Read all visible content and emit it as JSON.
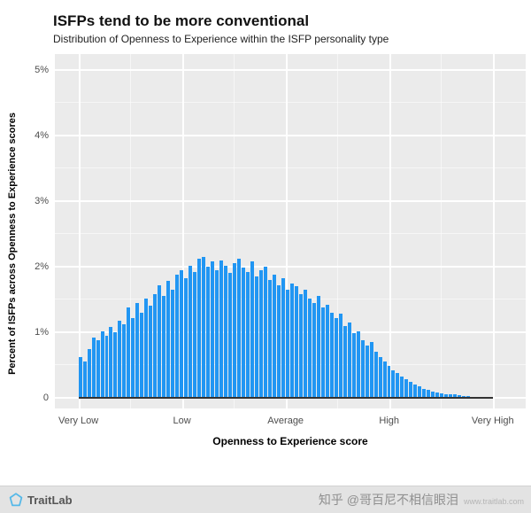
{
  "header": {
    "title": "ISFPs tend to be more conventional",
    "subtitle": "Distribution of Openness to Experience within the ISFP personality type"
  },
  "chart_data": {
    "type": "bar",
    "title": "ISFPs tend to be more conventional",
    "subtitle": "Distribution of Openness to Experience within the ISFP personality type",
    "xlabel": "Openness to Experience score",
    "ylabel": "Percent of ISFPs across Openness to Experience scores",
    "x_tick_labels": [
      "Very Low",
      "Low",
      "Average",
      "High",
      "Very High"
    ],
    "y_tick_labels": [
      "0",
      "1%",
      "2%",
      "3%",
      "4%",
      "5%"
    ],
    "y_tick_values": [
      0,
      1,
      2,
      3,
      4,
      5
    ],
    "ylim": [
      0,
      5.2
    ],
    "grid": "white major and minor gridlines on gray panel",
    "legend": "none",
    "bar_color": "#2196f3",
    "panel_bg": "#ebebeb",
    "values": [
      0.62,
      0.55,
      0.75,
      0.92,
      0.88,
      1.02,
      0.95,
      1.08,
      1.0,
      1.18,
      1.12,
      1.38,
      1.22,
      1.45,
      1.3,
      1.52,
      1.4,
      1.58,
      1.72,
      1.55,
      1.78,
      1.65,
      1.88,
      1.95,
      1.82,
      2.02,
      1.92,
      2.12,
      2.15,
      2.0,
      2.08,
      1.95,
      2.1,
      2.02,
      1.9,
      2.05,
      2.12,
      1.98,
      1.92,
      2.08,
      1.85,
      1.95,
      2.0,
      1.8,
      1.88,
      1.72,
      1.82,
      1.65,
      1.75,
      1.7,
      1.58,
      1.65,
      1.52,
      1.45,
      1.55,
      1.38,
      1.42,
      1.3,
      1.22,
      1.28,
      1.1,
      1.15,
      0.98,
      1.02,
      0.88,
      0.8,
      0.85,
      0.7,
      0.62,
      0.55,
      0.48,
      0.42,
      0.38,
      0.32,
      0.28,
      0.24,
      0.2,
      0.17,
      0.14,
      0.12,
      0.1,
      0.08,
      0.07,
      0.06,
      0.05,
      0.05,
      0.04,
      0.03,
      0.03,
      0.02,
      0.02,
      0.01,
      0.01,
      0.01
    ]
  },
  "footer": {
    "brand": "TraitLab",
    "watermark": "知乎 @哥百尼不相信眼泪",
    "url": "www.traitlab.com"
  }
}
